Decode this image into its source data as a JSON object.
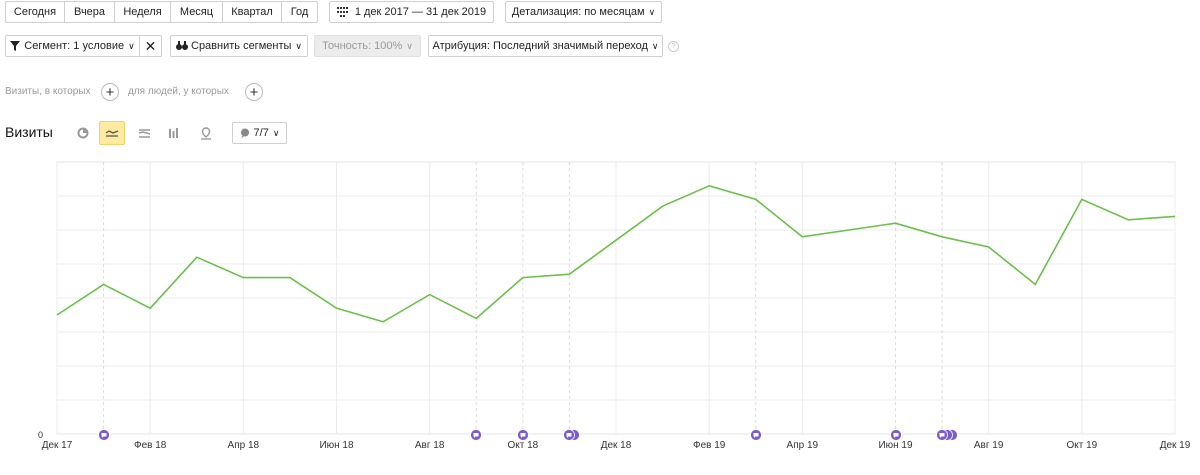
{
  "toolbar": {
    "periods": [
      "Сегодня",
      "Вчера",
      "Неделя",
      "Месяц",
      "Квартал",
      "Год"
    ],
    "date_range": "1 дек 2017 — 31 дек 2019",
    "detail": "Детализация: по месяцам"
  },
  "filters": {
    "segment": "Сегмент: 1 условие",
    "compare": "Сравнить сегменты",
    "accuracy": "Точность: 100%",
    "attribution": "Атрибуция: Последний значимый переход"
  },
  "conditions": {
    "visits_label": "Визиты, в которых",
    "people_label": "для людей, у которых"
  },
  "chart_header": {
    "title": "Визиты",
    "annotations_counter": "7/7"
  },
  "colors": {
    "line": "#6cc04a",
    "annotation": "#7b5ccf",
    "active_view": "#ffeba0"
  },
  "chart_data": {
    "type": "line",
    "title": "Визиты",
    "x": [
      "Дек 17",
      "Янв 18",
      "Фев 18",
      "Мар 18",
      "Апр 18",
      "Май 18",
      "Июн 18",
      "Июл 18",
      "Авг 18",
      "Сен 18",
      "Окт 18",
      "Ноя 18",
      "Дек 18",
      "Янв 19",
      "Фев 19",
      "Мар 19",
      "Апр 19",
      "Май 19",
      "Июн 19",
      "Июл 19",
      "Авг 19",
      "Сен 19",
      "Окт 19",
      "Ноя 19",
      "Дек 19"
    ],
    "tick_labels": [
      "Дек 17",
      "Фев 18",
      "Апр 18",
      "Июн 18",
      "Авг 18",
      "Окт 18",
      "Дек 18",
      "Фев 19",
      "Апр 19",
      "Июн 19",
      "Авг 19",
      "Окт 19",
      "Дек 19"
    ],
    "y_tick_labels": [
      "0"
    ],
    "series": [
      {
        "values": [
          35,
          44,
          37,
          52,
          46,
          46,
          37,
          33,
          41,
          34,
          46,
          47,
          57,
          67,
          73,
          69,
          58,
          60,
          62,
          58,
          55,
          44,
          69,
          63,
          64
        ]
      }
    ],
    "ylim": [
      0,
      80
    ],
    "annotations": [
      {
        "month": "Янв 18",
        "count": 1
      },
      {
        "month": "Сен 18",
        "count": 1
      },
      {
        "month": "Окт 18",
        "count": 1
      },
      {
        "month": "Ноя 18",
        "count": 2
      },
      {
        "month": "Мар 19",
        "count": 1
      },
      {
        "month": "Июн 19",
        "count": 1
      },
      {
        "month": "Июл 19",
        "count": 3
      }
    ],
    "grid": true
  }
}
